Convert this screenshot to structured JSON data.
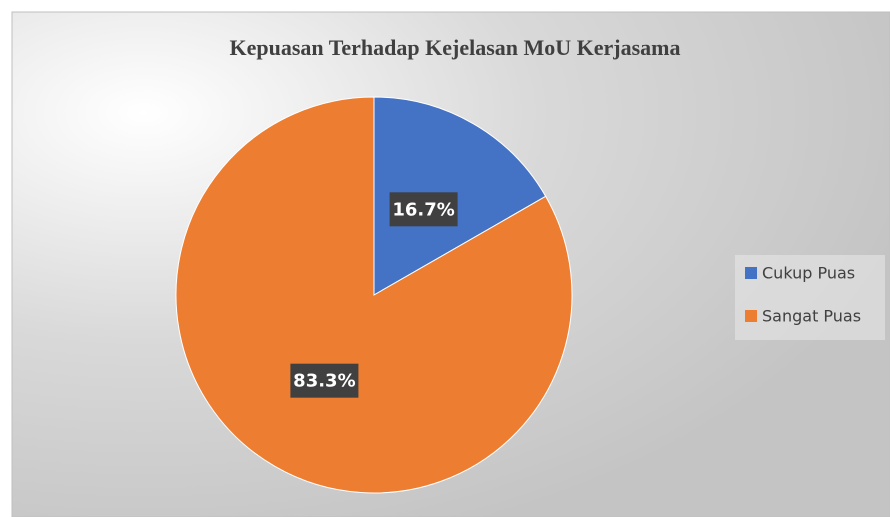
{
  "chart_data": {
    "type": "pie",
    "title": "Kepuasan Terhadap Kejelasan MoU Kerjasama",
    "categories": [
      "Cukup Puas",
      "Sangat Puas"
    ],
    "values": [
      16.7,
      83.3
    ],
    "value_labels": [
      "16.7%",
      "83.3%"
    ],
    "colors": [
      "#4472c4",
      "#ed7d31"
    ],
    "legend": "right"
  }
}
